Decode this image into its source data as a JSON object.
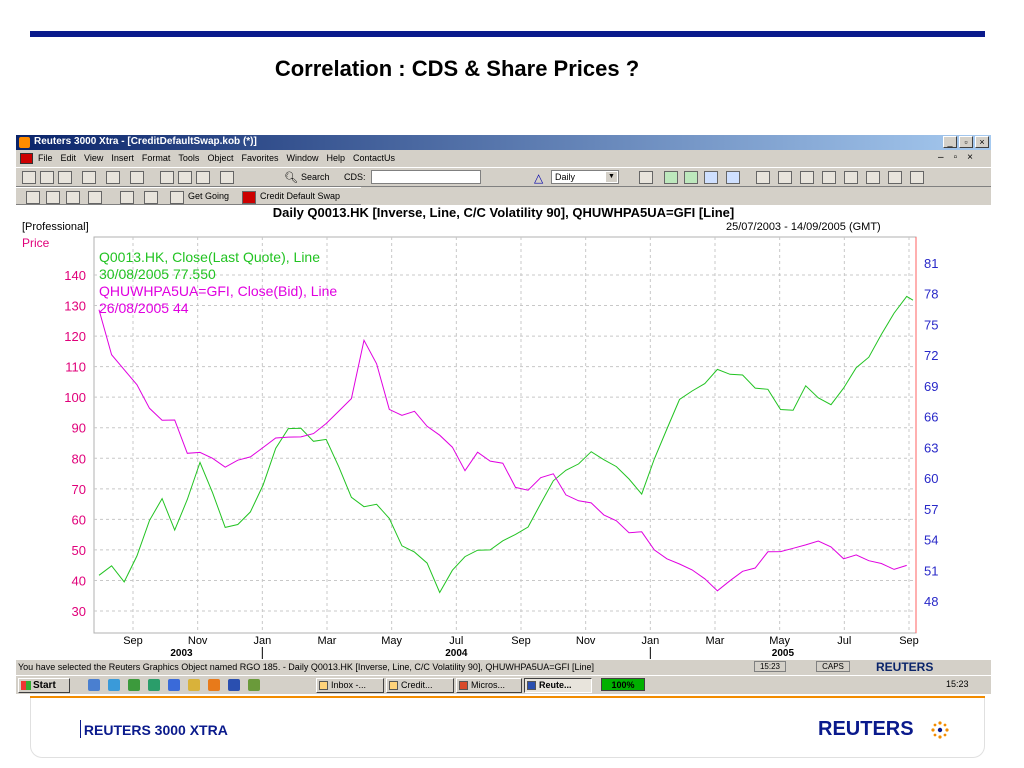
{
  "slide": {
    "title": "Correlation : CDS & Share Prices ?",
    "footer_left": "REUTERS 3000 XTRA",
    "footer_logo": "REUTERS",
    "accent_color": "#0a1a8c",
    "footer_line_color": "#f28c00"
  },
  "window": {
    "title": "Reuters 3000 Xtra - [CreditDefaultSwap.kob (*)]",
    "menu": [
      "File",
      "Edit",
      "View",
      "Insert",
      "Format",
      "Tools",
      "Object",
      "Favorites",
      "Window",
      "Help",
      "ContactUs"
    ],
    "toolbar": {
      "search_label": "Search",
      "cds_label": "CDS:",
      "cds_value": "",
      "period": "Daily"
    },
    "toolbar2": {
      "get_going": "Get Going",
      "credit_default_swap": "Credit Default Swap"
    }
  },
  "chart_header": {
    "title": "Daily Q0013.HK [Inverse, Line, C/C Volatility 90], QHUWHPA5UA=GFI [Line]",
    "professional": "[Professional]",
    "date_range": "25/07/2003 - 14/09/2005 (GMT)",
    "price_label": "Price"
  },
  "chart_data": {
    "type": "line",
    "legend": [
      {
        "text": "Q0013.HK, Close(Last Quote), Line",
        "color": "#22c322"
      },
      {
        "text": "30/08/2005 77.550",
        "color": "#22c322"
      },
      {
        "text": "QHUWHPA5UA=GFI, Close(Bid), Line",
        "color": "#e000e0"
      },
      {
        "text": "26/08/2005 44",
        "color": "#e000e0"
      }
    ],
    "x_ticks": [
      "Sep",
      "Nov",
      "Jan",
      "Mar",
      "May",
      "Jul",
      "Sep",
      "Nov",
      "Jan",
      "Mar",
      "May",
      "Jul",
      "Sep"
    ],
    "year_labels": [
      "2003",
      "2004",
      "2005"
    ],
    "left_axis": {
      "ticks": [
        140,
        130,
        120,
        110,
        100,
        90,
        80,
        70,
        60,
        50,
        40,
        30
      ],
      "color": "#e0007a"
    },
    "right_axis": {
      "ticks": [
        81,
        78,
        75,
        72,
        69,
        66,
        63,
        60,
        57,
        54,
        51,
        48
      ],
      "color": "#2828c8"
    },
    "series": [
      {
        "name": "Q0013.HK",
        "color": "#22c322",
        "axis": "right",
        "points": [
          [
            0,
            50.1
          ],
          [
            2,
            51.3
          ],
          [
            4,
            50.0
          ],
          [
            6,
            52.8
          ],
          [
            8,
            55.6
          ],
          [
            10,
            58.0
          ],
          [
            12,
            55.2
          ],
          [
            14,
            57.5
          ],
          [
            16,
            61.4
          ],
          [
            18,
            58.7
          ],
          [
            20,
            55.6
          ],
          [
            22,
            55.2
          ],
          [
            24,
            56.7
          ],
          [
            26,
            59.6
          ],
          [
            28,
            62.5
          ],
          [
            30,
            64.7
          ],
          [
            32,
            65.0
          ],
          [
            34,
            64.0
          ],
          [
            36,
            63.5
          ],
          [
            38,
            61.1
          ],
          [
            40,
            58.4
          ],
          [
            42,
            56.8
          ],
          [
            44,
            57.3
          ],
          [
            46,
            56.2
          ],
          [
            48,
            53.8
          ],
          [
            50,
            52.5
          ],
          [
            52,
            51.7
          ],
          [
            54,
            49.1
          ],
          [
            56,
            50.6
          ],
          [
            58,
            52.2
          ],
          [
            60,
            53.1
          ],
          [
            62,
            53.4
          ],
          [
            64,
            53.6
          ],
          [
            66,
            54.5
          ],
          [
            68,
            55.5
          ],
          [
            70,
            57.1
          ],
          [
            72,
            59.6
          ],
          [
            74,
            60.9
          ],
          [
            76,
            61.8
          ],
          [
            78,
            62.3
          ],
          [
            80,
            61.8
          ],
          [
            82,
            61.4
          ],
          [
            84,
            59.5
          ],
          [
            86,
            58.3
          ],
          [
            88,
            62.0
          ],
          [
            90,
            65.2
          ],
          [
            92,
            67.4
          ],
          [
            94,
            68.5
          ],
          [
            96,
            69.5
          ],
          [
            98,
            70.2
          ],
          [
            100,
            70.0
          ],
          [
            102,
            70.2
          ],
          [
            104,
            69.2
          ],
          [
            106,
            68.4
          ],
          [
            108,
            66.7
          ],
          [
            110,
            66.9
          ],
          [
            112,
            68.6
          ],
          [
            114,
            67.7
          ],
          [
            116,
            67.3
          ],
          [
            118,
            69.2
          ],
          [
            120,
            70.5
          ],
          [
            122,
            71.8
          ],
          [
            124,
            74.3
          ],
          [
            126,
            75.7
          ],
          [
            128,
            77.6
          ],
          [
            129,
            77.5
          ]
        ]
      },
      {
        "name": "QHUWHPA5UA=GFI",
        "color": "#e000e0",
        "axis": "left",
        "points": [
          [
            0,
            130
          ],
          [
            2,
            113
          ],
          [
            4,
            109
          ],
          [
            6,
            105
          ],
          [
            8,
            95
          ],
          [
            10,
            92
          ],
          [
            12,
            93
          ],
          [
            14,
            83
          ],
          [
            16,
            81
          ],
          [
            18,
            80
          ],
          [
            20,
            78
          ],
          [
            22,
            78
          ],
          [
            24,
            80
          ],
          [
            26,
            84
          ],
          [
            28,
            88
          ],
          [
            30,
            86
          ],
          [
            32,
            87
          ],
          [
            34,
            89
          ],
          [
            36,
            90
          ],
          [
            38,
            95
          ],
          [
            40,
            100
          ],
          [
            42,
            120
          ],
          [
            44,
            110
          ],
          [
            46,
            96
          ],
          [
            48,
            95
          ],
          [
            50,
            94
          ],
          [
            52,
            90
          ],
          [
            54,
            88
          ],
          [
            56,
            85
          ],
          [
            58,
            75
          ],
          [
            60,
            82
          ],
          [
            62,
            80
          ],
          [
            64,
            77
          ],
          [
            66,
            70
          ],
          [
            68,
            70
          ],
          [
            70,
            75
          ],
          [
            72,
            74
          ],
          [
            74,
            68
          ],
          [
            76,
            67
          ],
          [
            78,
            64
          ],
          [
            80,
            61
          ],
          [
            82,
            60
          ],
          [
            84,
            57
          ],
          [
            86,
            55
          ],
          [
            88,
            50
          ],
          [
            90,
            48
          ],
          [
            92,
            44
          ],
          [
            94,
            43
          ],
          [
            96,
            41
          ],
          [
            98,
            38
          ],
          [
            100,
            39
          ],
          [
            102,
            43
          ],
          [
            104,
            45
          ],
          [
            106,
            48
          ],
          [
            108,
            49
          ],
          [
            110,
            51
          ],
          [
            112,
            53
          ],
          [
            114,
            52
          ],
          [
            116,
            51
          ],
          [
            118,
            48
          ],
          [
            120,
            47
          ],
          [
            122,
            46
          ],
          [
            124,
            46
          ],
          [
            126,
            45
          ],
          [
            128,
            44
          ]
        ]
      }
    ]
  },
  "statusbar": {
    "message": "You have selected the Reuters Graphics Object named RGO 185. - Daily Q0013.HK [Inverse, Line, C/C Volatility 90], QHUWHPA5UA=GFI [Line]",
    "time": "15:23",
    "caps": "CAPS",
    "logo": "REUTERS"
  },
  "taskbar": {
    "start": "Start",
    "tasks": [
      "Inbox -...",
      "Credit...",
      "Micros...",
      "Reute..."
    ],
    "zoom": "100%",
    "clock": "15:23"
  }
}
